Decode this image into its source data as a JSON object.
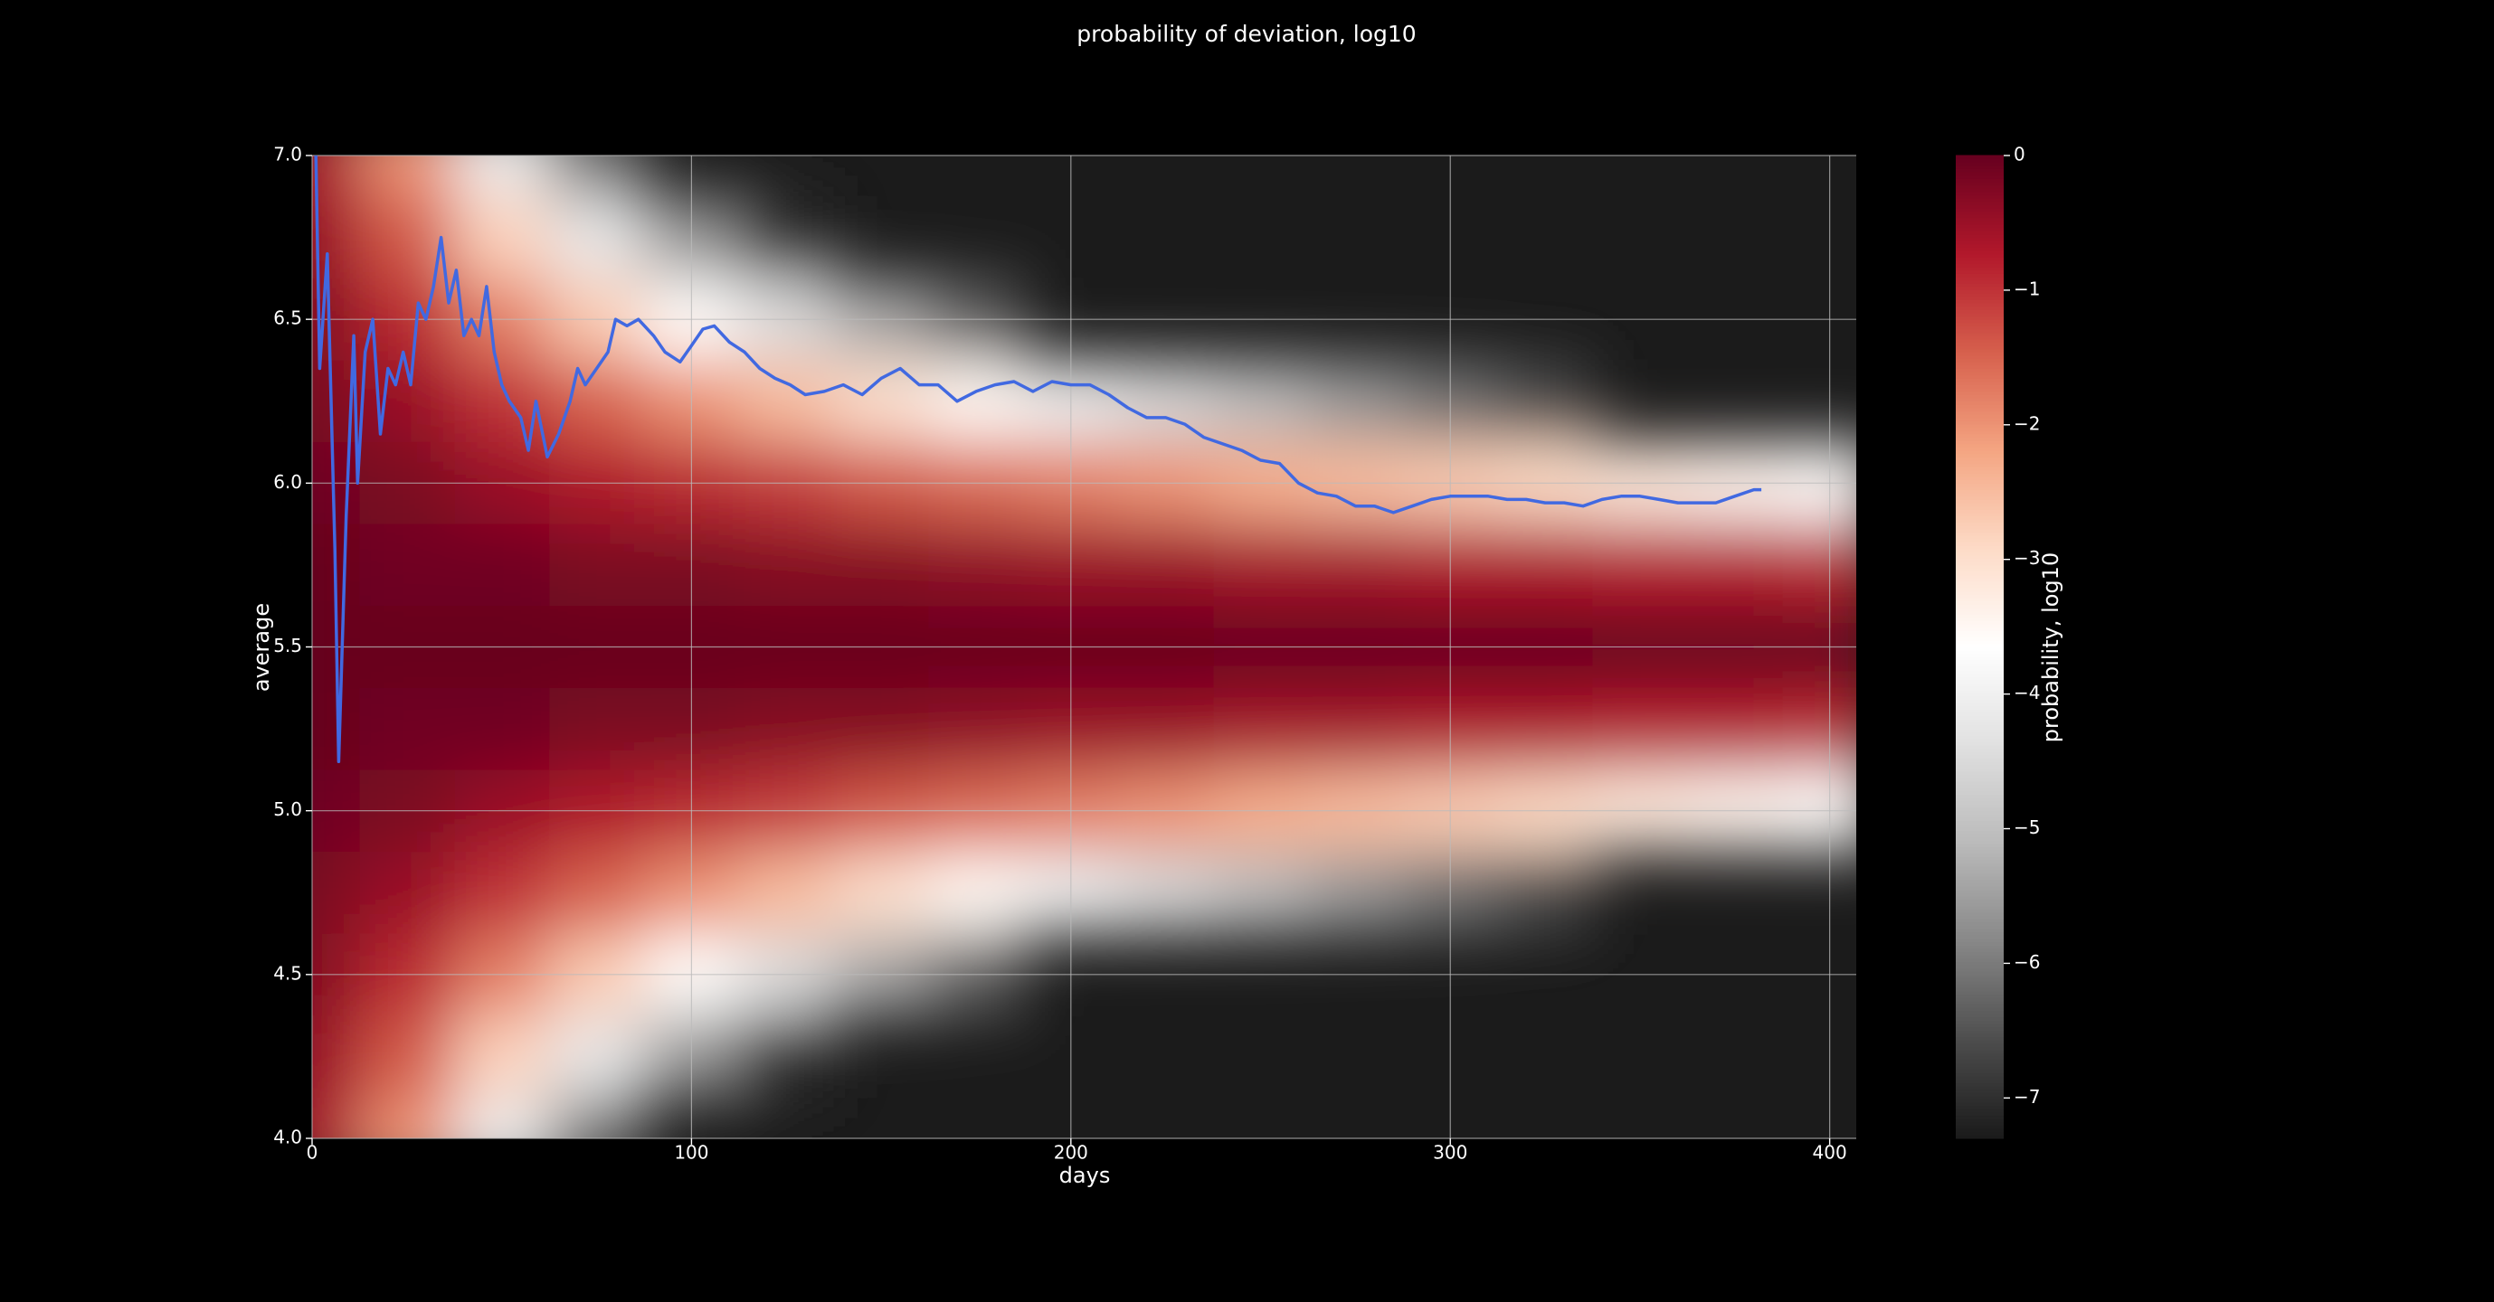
{
  "chart_data": {
    "type": "heatmap",
    "title": "probability of deviation, log10",
    "xlabel": "days",
    "ylabel": "average",
    "colorbar_label": "probability, log10",
    "colormap": "RdGy_r",
    "xlim": [
      0,
      407
    ],
    "ylim": [
      4,
      7
    ],
    "clim": [
      -7.3,
      0
    ],
    "xticks": [
      0,
      100,
      200,
      300,
      400
    ],
    "yticks": [
      {
        "value": 4,
        "label": "4.0"
      },
      4.5,
      {
        "value": 5,
        "label": "5.0"
      },
      5.5,
      {
        "value": 6,
        "label": "6.0"
      },
      6.5,
      {
        "value": 7,
        "label": "7.0"
      }
    ],
    "cticks": [
      0,
      {
        "value": -1,
        "label": "−1"
      },
      {
        "value": -2,
        "label": "−2"
      },
      {
        "value": -3,
        "label": "−3"
      },
      {
        "value": -4,
        "label": "−4"
      },
      {
        "value": -5,
        "label": "−5"
      },
      {
        "value": -6,
        "label": "−6"
      },
      {
        "value": -7,
        "label": "−7"
      }
    ],
    "grid": true,
    "x": [
      0,
      25,
      50,
      75,
      100,
      125,
      150,
      175,
      200,
      225,
      250,
      275,
      300,
      325,
      350,
      375,
      400
    ],
    "y": [
      4,
      4.25,
      4.5,
      4.75,
      5,
      5.25,
      5.5,
      5.75,
      6,
      6.25,
      6.5,
      6.75,
      7
    ],
    "z": [
      [
        -0.6,
        -2.0,
        -4.1,
        -6.1,
        null,
        null,
        null,
        null,
        null,
        null,
        null,
        null,
        null,
        null,
        null,
        null,
        null
      ],
      [
        -0.5,
        -1.4,
        -2.8,
        -4.2,
        -5.6,
        -7.0,
        null,
        null,
        null,
        null,
        null,
        null,
        null,
        null,
        null,
        null,
        null
      ],
      [
        -0.3,
        -0.9,
        -1.8,
        -2.7,
        -3.6,
        -4.5,
        -5.4,
        -6.3,
        null,
        null,
        null,
        null,
        null,
        null,
        null,
        null,
        null
      ],
      [
        -0.2,
        -0.5,
        -1.0,
        -1.5,
        -2.0,
        -2.5,
        -3.0,
        -3.5,
        -4.1,
        -4.6,
        -5.1,
        -5.6,
        -6.1,
        -6.6,
        null,
        null,
        null
      ],
      [
        -0.1,
        -0.2,
        -0.5,
        -0.7,
        -0.9,
        -1.1,
        -1.4,
        -1.6,
        -1.8,
        -2.0,
        -2.3,
        -2.5,
        -2.7,
        -2.9,
        -3.2,
        -3.4,
        -3.6
      ],
      [
        0,
        -0.1,
        -0.1,
        -0.2,
        -0.2,
        -0.3,
        -0.3,
        -0.4,
        -0.5,
        -0.5,
        -0.6,
        -0.6,
        -0.7,
        -0.7,
        -0.8,
        -0.8,
        -0.9
      ],
      [
        0,
        0,
        0,
        0,
        0,
        0,
        0,
        0,
        0,
        0,
        0,
        0,
        0,
        0,
        0,
        0,
        0
      ],
      [
        0,
        -0.1,
        -0.1,
        -0.2,
        -0.2,
        -0.3,
        -0.3,
        -0.4,
        -0.5,
        -0.5,
        -0.6,
        -0.6,
        -0.7,
        -0.7,
        -0.8,
        -0.8,
        -0.9
      ],
      [
        -0.1,
        -0.2,
        -0.5,
        -0.7,
        -0.9,
        -1.1,
        -1.4,
        -1.6,
        -1.8,
        -2.0,
        -2.3,
        -2.5,
        -2.7,
        -2.9,
        -3.2,
        -3.4,
        -3.6
      ],
      [
        -0.2,
        -0.5,
        -1.0,
        -1.5,
        -2.0,
        -2.5,
        -3.0,
        -3.5,
        -4.1,
        -4.6,
        -5.1,
        -5.6,
        -6.1,
        -6.6,
        null,
        null,
        null
      ],
      [
        -0.3,
        -0.9,
        -1.8,
        -2.7,
        -3.6,
        -4.5,
        -5.4,
        -6.3,
        null,
        null,
        null,
        null,
        null,
        null,
        null,
        null,
        null
      ],
      [
        -0.5,
        -1.4,
        -2.8,
        -4.2,
        -5.6,
        -7.0,
        null,
        null,
        null,
        null,
        null,
        null,
        null,
        null,
        null,
        null,
        null
      ],
      [
        -0.6,
        -2.0,
        -4.1,
        -6.1,
        null,
        null,
        null,
        null,
        null,
        null,
        null,
        null,
        null,
        null,
        null,
        null,
        null
      ]
    ],
    "line": {
      "color": "#4169e1",
      "x": [
        1,
        2,
        4,
        6,
        7,
        9,
        11,
        12,
        14,
        16,
        18,
        20,
        22,
        24,
        26,
        28,
        30,
        32,
        34,
        36,
        38,
        40,
        42,
        44,
        46,
        48,
        50,
        52,
        55,
        57,
        59,
        62,
        65,
        68,
        70,
        72,
        75,
        78,
        80,
        83,
        86,
        90,
        93,
        97,
        100,
        103,
        106,
        110,
        114,
        118,
        122,
        126,
        130,
        135,
        140,
        145,
        150,
        155,
        160,
        165,
        170,
        175,
        180,
        185,
        190,
        195,
        200,
        205,
        210,
        215,
        220,
        225,
        230,
        235,
        240,
        245,
        250,
        255,
        260,
        265,
        270,
        275,
        280,
        285,
        290,
        295,
        300,
        305,
        310,
        315,
        320,
        325,
        330,
        335,
        340,
        345,
        350,
        355,
        360,
        365,
        370,
        375,
        380,
        382
      ],
      "values": [
        7.0,
        6.35,
        6.7,
        5.8,
        5.15,
        5.9,
        6.45,
        6.0,
        6.4,
        6.5,
        6.15,
        6.35,
        6.3,
        6.4,
        6.3,
        6.55,
        6.5,
        6.6,
        6.75,
        6.55,
        6.65,
        6.45,
        6.5,
        6.45,
        6.6,
        6.4,
        6.3,
        6.25,
        6.2,
        6.1,
        6.25,
        6.08,
        6.15,
        6.25,
        6.35,
        6.3,
        6.35,
        6.4,
        6.5,
        6.48,
        6.5,
        6.45,
        6.4,
        6.37,
        6.42,
        6.47,
        6.48,
        6.43,
        6.4,
        6.35,
        6.32,
        6.3,
        6.27,
        6.28,
        6.3,
        6.27,
        6.32,
        6.35,
        6.3,
        6.3,
        6.25,
        6.28,
        6.3,
        6.31,
        6.28,
        6.31,
        6.3,
        6.3,
        6.27,
        6.23,
        6.2,
        6.2,
        6.18,
        6.14,
        6.12,
        6.1,
        6.07,
        6.06,
        6.0,
        5.97,
        5.96,
        5.93,
        5.93,
        5.91,
        5.93,
        5.95,
        5.96,
        5.96,
        5.96,
        5.95,
        5.95,
        5.94,
        5.94,
        5.93,
        5.95,
        5.96,
        5.96,
        5.95,
        5.94,
        5.94,
        5.94,
        5.96,
        5.98,
        5.98
      ]
    }
  }
}
